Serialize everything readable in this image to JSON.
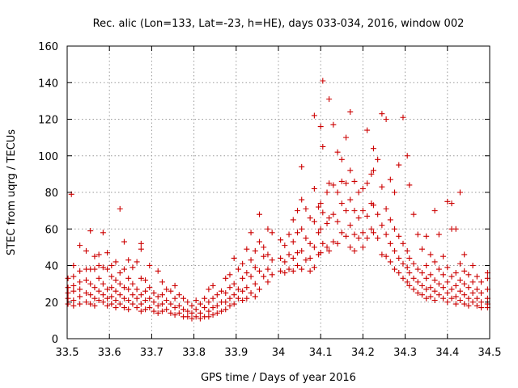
{
  "chart_data": {
    "type": "scatter",
    "title": "Rec. alic (Lon=133, Lat=-23, h=HE), days 033-034, 2016, window 002",
    "xlabel": "GPS time / Days of year 2016",
    "ylabel": "STEC from uqrg / TECUs",
    "xlim": [
      33.5,
      34.5
    ],
    "ylim": [
      0,
      160
    ],
    "xticks": [
      33.5,
      33.6,
      33.7,
      33.8,
      33.9,
      34.0,
      34.1,
      34.2,
      34.3,
      34.4,
      34.5
    ],
    "xtick_labels": [
      "33.5",
      "33.6",
      "33.7",
      "33.8",
      "33.9",
      "34",
      "34.1",
      "34.2",
      "34.3",
      "34.4",
      "34.5"
    ],
    "yticks": [
      0,
      20,
      40,
      60,
      80,
      100,
      120,
      140,
      160
    ],
    "ytick_labels": [
      "0",
      "20",
      "40",
      "60",
      "80",
      "100",
      "120",
      "140",
      "160"
    ],
    "grid": true,
    "marker": "+",
    "color": "#cc0000",
    "points": [
      [
        33.502,
        33
      ],
      [
        33.502,
        28
      ],
      [
        33.502,
        25
      ],
      [
        33.502,
        22
      ],
      [
        33.502,
        19
      ],
      [
        33.51,
        79
      ],
      [
        33.515,
        40
      ],
      [
        33.515,
        34
      ],
      [
        33.515,
        29
      ],
      [
        33.515,
        26
      ],
      [
        33.515,
        21
      ],
      [
        33.515,
        18
      ],
      [
        33.53,
        51
      ],
      [
        33.53,
        37
      ],
      [
        33.53,
        31
      ],
      [
        33.53,
        27
      ],
      [
        33.53,
        23
      ],
      [
        33.53,
        19
      ],
      [
        33.545,
        48
      ],
      [
        33.545,
        38
      ],
      [
        33.545,
        32
      ],
      [
        33.545,
        25
      ],
      [
        33.545,
        20
      ],
      [
        33.555,
        59
      ],
      [
        33.555,
        38
      ],
      [
        33.555,
        30
      ],
      [
        33.555,
        24
      ],
      [
        33.555,
        19
      ],
      [
        33.565,
        45
      ],
      [
        33.565,
        38
      ],
      [
        33.565,
        28
      ],
      [
        33.565,
        22
      ],
      [
        33.565,
        18
      ],
      [
        33.575,
        46
      ],
      [
        33.575,
        40
      ],
      [
        33.575,
        33
      ],
      [
        33.575,
        26
      ],
      [
        33.575,
        21
      ],
      [
        33.585,
        58
      ],
      [
        33.585,
        39
      ],
      [
        33.585,
        30
      ],
      [
        33.585,
        24
      ],
      [
        33.585,
        20
      ],
      [
        33.595,
        47
      ],
      [
        33.595,
        38
      ],
      [
        33.595,
        27
      ],
      [
        33.595,
        22
      ],
      [
        33.595,
        18
      ],
      [
        33.605,
        40
      ],
      [
        33.605,
        34
      ],
      [
        33.605,
        28
      ],
      [
        33.605,
        23
      ],
      [
        33.605,
        19
      ],
      [
        33.615,
        42
      ],
      [
        33.615,
        32
      ],
      [
        33.615,
        26
      ],
      [
        33.615,
        21
      ],
      [
        33.615,
        17
      ],
      [
        33.625,
        71
      ],
      [
        33.625,
        36
      ],
      [
        33.625,
        30
      ],
      [
        33.625,
        24
      ],
      [
        33.625,
        19
      ],
      [
        33.635,
        53
      ],
      [
        33.635,
        38
      ],
      [
        33.635,
        28
      ],
      [
        33.635,
        22
      ],
      [
        33.635,
        17
      ],
      [
        33.645,
        43
      ],
      [
        33.645,
        33
      ],
      [
        33.645,
        27
      ],
      [
        33.645,
        21
      ],
      [
        33.645,
        16
      ],
      [
        33.655,
        39
      ],
      [
        33.655,
        30
      ],
      [
        33.655,
        24
      ],
      [
        33.655,
        19
      ],
      [
        33.665,
        42
      ],
      [
        33.665,
        27
      ],
      [
        33.665,
        22
      ],
      [
        33.665,
        17
      ],
      [
        33.675,
        52
      ],
      [
        33.675,
        49
      ],
      [
        33.675,
        33
      ],
      [
        33.675,
        24
      ],
      [
        33.675,
        19
      ],
      [
        33.675,
        15
      ],
      [
        33.685,
        32
      ],
      [
        33.685,
        26
      ],
      [
        33.685,
        21
      ],
      [
        33.685,
        16
      ],
      [
        33.695,
        40
      ],
      [
        33.695,
        28
      ],
      [
        33.695,
        22
      ],
      [
        33.695,
        17
      ],
      [
        33.705,
        25
      ],
      [
        33.705,
        20
      ],
      [
        33.705,
        15
      ],
      [
        33.715,
        37
      ],
      [
        33.715,
        23
      ],
      [
        33.715,
        18
      ],
      [
        33.715,
        14
      ],
      [
        33.725,
        31
      ],
      [
        33.725,
        24
      ],
      [
        33.725,
        19
      ],
      [
        33.725,
        15
      ],
      [
        33.735,
        27
      ],
      [
        33.735,
        21
      ],
      [
        33.735,
        16
      ],
      [
        33.745,
        26
      ],
      [
        33.745,
        19
      ],
      [
        33.745,
        14
      ],
      [
        33.755,
        29
      ],
      [
        33.755,
        22
      ],
      [
        33.755,
        17
      ],
      [
        33.755,
        13
      ],
      [
        33.765,
        24
      ],
      [
        33.765,
        18
      ],
      [
        33.765,
        14
      ],
      [
        33.775,
        22
      ],
      [
        33.775,
        16
      ],
      [
        33.775,
        12
      ],
      [
        33.785,
        20
      ],
      [
        33.785,
        15
      ],
      [
        33.785,
        12
      ],
      [
        33.795,
        18
      ],
      [
        33.795,
        14
      ],
      [
        33.795,
        11
      ],
      [
        33.805,
        21
      ],
      [
        33.805,
        16
      ],
      [
        33.805,
        12
      ],
      [
        33.815,
        19
      ],
      [
        33.815,
        14
      ],
      [
        33.815,
        11
      ],
      [
        33.825,
        22
      ],
      [
        33.825,
        17
      ],
      [
        33.825,
        12
      ],
      [
        33.835,
        27
      ],
      [
        33.835,
        20
      ],
      [
        33.835,
        15
      ],
      [
        33.835,
        12
      ],
      [
        33.845,
        29
      ],
      [
        33.845,
        22
      ],
      [
        33.845,
        17
      ],
      [
        33.845,
        13
      ],
      [
        33.855,
        24
      ],
      [
        33.855,
        18
      ],
      [
        33.855,
        14
      ],
      [
        33.865,
        26
      ],
      [
        33.865,
        20
      ],
      [
        33.865,
        15
      ],
      [
        33.875,
        33
      ],
      [
        33.875,
        25
      ],
      [
        33.875,
        20
      ],
      [
        33.875,
        16
      ],
      [
        33.885,
        35
      ],
      [
        33.885,
        28
      ],
      [
        33.885,
        22
      ],
      [
        33.885,
        18
      ],
      [
        33.895,
        44
      ],
      [
        33.895,
        30
      ],
      [
        33.895,
        24
      ],
      [
        33.895,
        19
      ],
      [
        33.905,
        38
      ],
      [
        33.905,
        27
      ],
      [
        33.905,
        22
      ],
      [
        33.915,
        41
      ],
      [
        33.915,
        33
      ],
      [
        33.915,
        26
      ],
      [
        33.915,
        21
      ],
      [
        33.925,
        49
      ],
      [
        33.925,
        36
      ],
      [
        33.925,
        28
      ],
      [
        33.925,
        22
      ],
      [
        33.935,
        58
      ],
      [
        33.935,
        43
      ],
      [
        33.935,
        34
      ],
      [
        33.935,
        25
      ],
      [
        33.945,
        48
      ],
      [
        33.945,
        39
      ],
      [
        33.945,
        30
      ],
      [
        33.945,
        23
      ],
      [
        33.955,
        68
      ],
      [
        33.955,
        53
      ],
      [
        33.955,
        37
      ],
      [
        33.955,
        27
      ],
      [
        33.965,
        50
      ],
      [
        33.965,
        45
      ],
      [
        33.965,
        34
      ],
      [
        33.975,
        60
      ],
      [
        33.975,
        46
      ],
      [
        33.975,
        38
      ],
      [
        33.975,
        31
      ],
      [
        33.985,
        58
      ],
      [
        33.985,
        43
      ],
      [
        33.985,
        35
      ],
      [
        34.005,
        54
      ],
      [
        34.005,
        44
      ],
      [
        34.005,
        37
      ],
      [
        34.015,
        51
      ],
      [
        34.015,
        42
      ],
      [
        34.015,
        36
      ],
      [
        34.025,
        57
      ],
      [
        34.025,
        46
      ],
      [
        34.025,
        38
      ],
      [
        34.035,
        65
      ],
      [
        34.035,
        53
      ],
      [
        34.035,
        44
      ],
      [
        34.035,
        37
      ],
      [
        34.045,
        70
      ],
      [
        34.045,
        58
      ],
      [
        34.045,
        47
      ],
      [
        34.045,
        40
      ],
      [
        34.055,
        94
      ],
      [
        34.055,
        76
      ],
      [
        34.055,
        60
      ],
      [
        34.055,
        48
      ],
      [
        34.055,
        38
      ],
      [
        34.065,
        71
      ],
      [
        34.065,
        55
      ],
      [
        34.065,
        43
      ],
      [
        34.075,
        66
      ],
      [
        34.075,
        52
      ],
      [
        34.075,
        44
      ],
      [
        34.075,
        37
      ],
      [
        34.085,
        122
      ],
      [
        34.085,
        82
      ],
      [
        34.085,
        64
      ],
      [
        34.085,
        50
      ],
      [
        34.085,
        39
      ],
      [
        34.095,
        72
      ],
      [
        34.095,
        58
      ],
      [
        34.095,
        46
      ],
      [
        34.1,
        116
      ],
      [
        34.1,
        74
      ],
      [
        34.1,
        60
      ],
      [
        34.1,
        47
      ],
      [
        34.105,
        141
      ],
      [
        34.105,
        105
      ],
      [
        34.105,
        69
      ],
      [
        34.105,
        52
      ],
      [
        34.115,
        80
      ],
      [
        34.115,
        63
      ],
      [
        34.115,
        50
      ],
      [
        34.12,
        131
      ],
      [
        34.12,
        85
      ],
      [
        34.12,
        66
      ],
      [
        34.12,
        48
      ],
      [
        34.13,
        117
      ],
      [
        34.13,
        84
      ],
      [
        34.13,
        68
      ],
      [
        34.13,
        53
      ],
      [
        34.14,
        102
      ],
      [
        34.14,
        80
      ],
      [
        34.14,
        64
      ],
      [
        34.14,
        52
      ],
      [
        34.15,
        98
      ],
      [
        34.15,
        86
      ],
      [
        34.15,
        74
      ],
      [
        34.15,
        58
      ],
      [
        34.16,
        110
      ],
      [
        34.16,
        85
      ],
      [
        34.16,
        70
      ],
      [
        34.16,
        56
      ],
      [
        34.17,
        124
      ],
      [
        34.17,
        92
      ],
      [
        34.17,
        76
      ],
      [
        34.17,
        62
      ],
      [
        34.17,
        50
      ],
      [
        34.18,
        86
      ],
      [
        34.18,
        70
      ],
      [
        34.18,
        57
      ],
      [
        34.18,
        48
      ],
      [
        34.19,
        80
      ],
      [
        34.19,
        66
      ],
      [
        34.19,
        55
      ],
      [
        34.2,
        82
      ],
      [
        34.2,
        70
      ],
      [
        34.2,
        58
      ],
      [
        34.2,
        50
      ],
      [
        34.21,
        114
      ],
      [
        34.21,
        85
      ],
      [
        34.21,
        67
      ],
      [
        34.21,
        55
      ],
      [
        34.22,
        90
      ],
      [
        34.22,
        74
      ],
      [
        34.22,
        60
      ],
      [
        34.225,
        104
      ],
      [
        34.225,
        92
      ],
      [
        34.225,
        73
      ],
      [
        34.225,
        58
      ],
      [
        34.235,
        98
      ],
      [
        34.235,
        68
      ],
      [
        34.235,
        55
      ],
      [
        34.245,
        123
      ],
      [
        34.245,
        83
      ],
      [
        34.245,
        62
      ],
      [
        34.245,
        46
      ],
      [
        34.255,
        120
      ],
      [
        34.255,
        71
      ],
      [
        34.255,
        57
      ],
      [
        34.255,
        45
      ],
      [
        34.265,
        87
      ],
      [
        34.265,
        65
      ],
      [
        34.265,
        52
      ],
      [
        34.265,
        42
      ],
      [
        34.275,
        80
      ],
      [
        34.275,
        60
      ],
      [
        34.275,
        48
      ],
      [
        34.275,
        38
      ],
      [
        34.285,
        95
      ],
      [
        34.285,
        56
      ],
      [
        34.285,
        44
      ],
      [
        34.285,
        36
      ],
      [
        34.295,
        121
      ],
      [
        34.295,
        52
      ],
      [
        34.295,
        41
      ],
      [
        34.295,
        33
      ],
      [
        34.305,
        100
      ],
      [
        34.305,
        48
      ],
      [
        34.305,
        39
      ],
      [
        34.305,
        31
      ],
      [
        34.31,
        84
      ],
      [
        34.31,
        44
      ],
      [
        34.31,
        36
      ],
      [
        34.31,
        29
      ],
      [
        34.32,
        68
      ],
      [
        34.32,
        41
      ],
      [
        34.32,
        33
      ],
      [
        34.32,
        27
      ],
      [
        34.33,
        57
      ],
      [
        34.33,
        38
      ],
      [
        34.33,
        31
      ],
      [
        34.33,
        25
      ],
      [
        34.34,
        49
      ],
      [
        34.34,
        36
      ],
      [
        34.34,
        29
      ],
      [
        34.34,
        24
      ],
      [
        34.35,
        56
      ],
      [
        34.35,
        40
      ],
      [
        34.35,
        33
      ],
      [
        34.35,
        27
      ],
      [
        34.35,
        22
      ],
      [
        34.36,
        46
      ],
      [
        34.36,
        35
      ],
      [
        34.36,
        28
      ],
      [
        34.36,
        23
      ],
      [
        34.37,
        70
      ],
      [
        34.37,
        42
      ],
      [
        34.37,
        32
      ],
      [
        34.37,
        26
      ],
      [
        34.37,
        21
      ],
      [
        34.38,
        57
      ],
      [
        34.38,
        38
      ],
      [
        34.38,
        30
      ],
      [
        34.38,
        24
      ],
      [
        34.39,
        45
      ],
      [
        34.39,
        35
      ],
      [
        34.39,
        28
      ],
      [
        34.39,
        22
      ],
      [
        34.4,
        75
      ],
      [
        34.4,
        39
      ],
      [
        34.4,
        31
      ],
      [
        34.4,
        25
      ],
      [
        34.4,
        20
      ],
      [
        34.41,
        74
      ],
      [
        34.41,
        60
      ],
      [
        34.41,
        34
      ],
      [
        34.41,
        27
      ],
      [
        34.41,
        22
      ],
      [
        34.42,
        60
      ],
      [
        34.42,
        36
      ],
      [
        34.42,
        29
      ],
      [
        34.42,
        23
      ],
      [
        34.42,
        19
      ],
      [
        34.43,
        80
      ],
      [
        34.43,
        41
      ],
      [
        34.43,
        32
      ],
      [
        34.43,
        26
      ],
      [
        34.43,
        21
      ],
      [
        34.44,
        46
      ],
      [
        34.44,
        37
      ],
      [
        34.44,
        30
      ],
      [
        34.44,
        24
      ],
      [
        34.44,
        19
      ],
      [
        34.45,
        35
      ],
      [
        34.45,
        28
      ],
      [
        34.45,
        22
      ],
      [
        34.45,
        18
      ],
      [
        34.46,
        40
      ],
      [
        34.46,
        31
      ],
      [
        34.46,
        25
      ],
      [
        34.46,
        20
      ],
      [
        34.47,
        34
      ],
      [
        34.47,
        27
      ],
      [
        34.47,
        22
      ],
      [
        34.47,
        18
      ],
      [
        34.48,
        31
      ],
      [
        34.48,
        25
      ],
      [
        34.48,
        20
      ],
      [
        34.48,
        17
      ],
      [
        34.495,
        36
      ],
      [
        34.495,
        33
      ],
      [
        34.495,
        27
      ],
      [
        34.495,
        22
      ],
      [
        34.495,
        19
      ],
      [
        34.495,
        17
      ]
    ]
  }
}
